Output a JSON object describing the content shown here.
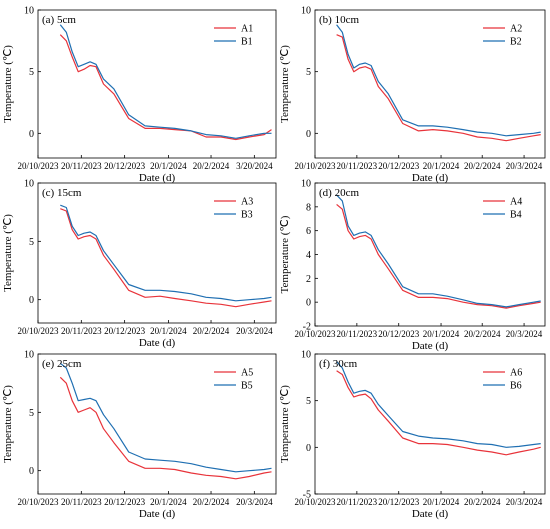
{
  "figure": {
    "series_colors": {
      "A": "#e8333a",
      "B": "#1f6fb2"
    }
  },
  "chart_data": [
    {
      "type": "line",
      "panel_label": "(a) 5cm",
      "xlabel": "Date (d)",
      "ylabel": "Temperature (℃)",
      "x_ticks": [
        "20/10/2023",
        "20/11/2023",
        "20/12/2023",
        "20/1/2024",
        "20/2/2024",
        "3/20/2024"
      ],
      "xlim": [
        "2023-10-20",
        "2024-03-28"
      ],
      "ylim": [
        -2,
        10
      ],
      "y_ticks": [
        0,
        5,
        10
      ],
      "legend_position": "top-right",
      "x": [
        "2023-11-04",
        "2023-11-08",
        "2023-11-12",
        "2023-11-16",
        "2023-11-20",
        "2023-11-24",
        "2023-11-28",
        "2023-12-03",
        "2023-12-10",
        "2023-12-20",
        "2023-12-31",
        "2024-01-10",
        "2024-01-20",
        "2024-01-31",
        "2024-02-10",
        "2024-02-20",
        "2024-03-01",
        "2024-03-10",
        "2024-03-20",
        "2024-03-25"
      ],
      "series": [
        {
          "name": "A1",
          "color": "#e8333a",
          "values": [
            8.0,
            7.5,
            6.2,
            5.0,
            5.2,
            5.5,
            5.4,
            4.0,
            3.2,
            1.2,
            0.4,
            0.4,
            0.3,
            0.2,
            -0.3,
            -0.3,
            -0.5,
            -0.3,
            -0.1,
            0.3
          ]
        },
        {
          "name": "B1",
          "color": "#1f6fb2",
          "values": [
            8.8,
            8.2,
            6.6,
            5.4,
            5.6,
            5.8,
            5.6,
            4.4,
            3.6,
            1.5,
            0.6,
            0.5,
            0.4,
            0.2,
            -0.1,
            -0.2,
            -0.4,
            -0.2,
            0.0,
            0.0
          ]
        }
      ]
    },
    {
      "type": "line",
      "panel_label": "(b) 10cm",
      "xlabel": "Date (d)",
      "ylabel": "Temperature (℃)",
      "x_ticks": [
        "20/10/2023",
        "20/11/2023",
        "20/12/2023",
        "20/1/2024",
        "20/2/2024",
        "20/3/2024"
      ],
      "xlim": [
        "2023-10-20",
        "2024-03-28"
      ],
      "ylim": [
        -2,
        10
      ],
      "y_ticks": [
        0,
        5,
        10
      ],
      "legend_position": "top-right",
      "x": [
        "2023-11-04",
        "2023-11-08",
        "2023-11-12",
        "2023-11-16",
        "2023-11-20",
        "2023-11-24",
        "2023-11-28",
        "2023-12-03",
        "2023-12-10",
        "2023-12-20",
        "2023-12-31",
        "2024-01-10",
        "2024-01-20",
        "2024-01-31",
        "2024-02-10",
        "2024-02-20",
        "2024-03-01",
        "2024-03-10",
        "2024-03-20",
        "2024-03-25"
      ],
      "series": [
        {
          "name": "A2",
          "color": "#e8333a",
          "values": [
            8.0,
            7.8,
            6.0,
            5.0,
            5.3,
            5.4,
            5.2,
            3.8,
            2.8,
            0.8,
            0.2,
            0.3,
            0.2,
            0.0,
            -0.3,
            -0.4,
            -0.6,
            -0.4,
            -0.2,
            -0.1
          ]
        },
        {
          "name": "B2",
          "color": "#1f6fb2",
          "values": [
            8.8,
            8.2,
            6.4,
            5.3,
            5.6,
            5.7,
            5.5,
            4.2,
            3.2,
            1.1,
            0.6,
            0.6,
            0.5,
            0.3,
            0.1,
            0.0,
            -0.2,
            -0.1,
            0.0,
            0.1
          ]
        }
      ]
    },
    {
      "type": "line",
      "panel_label": "(c) 15cm",
      "xlabel": "Date (d)",
      "ylabel": "Temperature (℃)",
      "x_ticks": [
        "20/10/2023",
        "20/11/2023",
        "20/12/2023",
        "20/1/2024",
        "20/2/2024",
        "20/3/2024"
      ],
      "xlim": [
        "2023-10-20",
        "2024-03-28"
      ],
      "ylim": [
        -2,
        10
      ],
      "y_ticks": [
        0,
        5,
        10
      ],
      "legend_position": "top-right",
      "x": [
        "2023-11-04",
        "2023-11-08",
        "2023-11-12",
        "2023-11-16",
        "2023-11-20",
        "2023-11-24",
        "2023-11-28",
        "2023-12-03",
        "2023-12-10",
        "2023-12-20",
        "2023-12-31",
        "2024-01-10",
        "2024-01-20",
        "2024-01-31",
        "2024-02-10",
        "2024-02-20",
        "2024-03-01",
        "2024-03-10",
        "2024-03-20",
        "2024-03-25"
      ],
      "series": [
        {
          "name": "A3",
          "color": "#e8333a",
          "values": [
            7.8,
            7.6,
            6.0,
            5.2,
            5.4,
            5.5,
            5.2,
            3.8,
            2.6,
            0.8,
            0.2,
            0.3,
            0.1,
            -0.1,
            -0.3,
            -0.4,
            -0.6,
            -0.4,
            -0.2,
            -0.1
          ]
        },
        {
          "name": "B3",
          "color": "#1f6fb2",
          "values": [
            8.1,
            7.9,
            6.3,
            5.5,
            5.7,
            5.8,
            5.5,
            4.2,
            3.0,
            1.3,
            0.8,
            0.8,
            0.7,
            0.5,
            0.2,
            0.1,
            -0.1,
            0.0,
            0.1,
            0.2
          ]
        }
      ]
    },
    {
      "type": "line",
      "panel_label": "(d) 20cm",
      "xlabel": "Date (d)",
      "ylabel": "Temperature (℃)",
      "x_ticks": [
        "20/10/2023",
        "20/11/2023",
        "20/12/2023",
        "20/1/2024",
        "20/2/2024",
        "20/3/2024"
      ],
      "xlim": [
        "2023-10-20",
        "2024-03-28"
      ],
      "ylim": [
        -2,
        10
      ],
      "y_ticks": [
        -2,
        0,
        2,
        4,
        6,
        8,
        10
      ],
      "legend_position": "top-right",
      "x": [
        "2023-11-04",
        "2023-11-08",
        "2023-11-12",
        "2023-11-16",
        "2023-11-20",
        "2023-11-24",
        "2023-11-28",
        "2023-12-03",
        "2023-12-10",
        "2023-12-20",
        "2023-12-31",
        "2024-01-10",
        "2024-01-20",
        "2024-01-31",
        "2024-02-10",
        "2024-02-20",
        "2024-03-01",
        "2024-03-10",
        "2024-03-20",
        "2024-03-25"
      ],
      "series": [
        {
          "name": "A4",
          "color": "#e8333a",
          "values": [
            8.2,
            7.8,
            6.0,
            5.3,
            5.5,
            5.6,
            5.3,
            4.0,
            2.8,
            1.0,
            0.4,
            0.4,
            0.3,
            0.0,
            -0.2,
            -0.3,
            -0.5,
            -0.3,
            -0.1,
            0.0
          ]
        },
        {
          "name": "B4",
          "color": "#1f6fb2",
          "values": [
            9.0,
            8.5,
            6.4,
            5.6,
            5.8,
            5.9,
            5.6,
            4.4,
            3.2,
            1.3,
            0.7,
            0.7,
            0.5,
            0.2,
            -0.1,
            -0.2,
            -0.4,
            -0.2,
            0.0,
            0.1
          ]
        }
      ]
    },
    {
      "type": "line",
      "panel_label": "(e) 25cm",
      "xlabel": "Date (d)",
      "ylabel": "Temperature (℃)",
      "x_ticks": [
        "20/10/2023",
        "20/11/2023",
        "20/12/2023",
        "20/1/2024",
        "20/2/2024",
        "20/3/2024"
      ],
      "xlim": [
        "2023-10-20",
        "2024-03-28"
      ],
      "ylim": [
        -2,
        10
      ],
      "y_ticks": [
        0,
        5,
        10
      ],
      "legend_position": "top-right",
      "x": [
        "2023-11-04",
        "2023-11-08",
        "2023-11-12",
        "2023-11-16",
        "2023-11-20",
        "2023-11-24",
        "2023-11-28",
        "2023-12-03",
        "2023-12-10",
        "2023-12-20",
        "2023-12-31",
        "2024-01-10",
        "2024-01-20",
        "2024-01-31",
        "2024-02-10",
        "2024-02-20",
        "2024-03-01",
        "2024-03-10",
        "2024-03-20",
        "2024-03-25"
      ],
      "series": [
        {
          "name": "A5",
          "color": "#e8333a",
          "values": [
            8.0,
            7.5,
            6.0,
            5.0,
            5.2,
            5.4,
            5.0,
            3.6,
            2.4,
            0.8,
            0.2,
            0.2,
            0.1,
            -0.2,
            -0.4,
            -0.5,
            -0.7,
            -0.5,
            -0.2,
            -0.1
          ]
        },
        {
          "name": "B5",
          "color": "#1f6fb2",
          "values": [
            9.2,
            8.8,
            7.5,
            6.0,
            6.1,
            6.2,
            6.0,
            4.8,
            3.6,
            1.6,
            1.0,
            0.9,
            0.8,
            0.6,
            0.3,
            0.1,
            -0.1,
            0.0,
            0.1,
            0.2
          ]
        }
      ]
    },
    {
      "type": "line",
      "panel_label": "(f) 30cm",
      "xlabel": "Date (d)",
      "ylabel": "Temperature (℃)",
      "x_ticks": [
        "20/10/2023",
        "20/11/2023",
        "20/12/2023",
        "20/1/2024",
        "20/2/2024",
        "20/3/2024"
      ],
      "xlim": [
        "2023-10-20",
        "2024-03-28"
      ],
      "ylim": [
        -5,
        10
      ],
      "y_ticks": [
        -5,
        0,
        5,
        10
      ],
      "legend_position": "top-right",
      "x": [
        "2023-11-04",
        "2023-11-08",
        "2023-11-12",
        "2023-11-16",
        "2023-11-20",
        "2023-11-24",
        "2023-11-28",
        "2023-12-03",
        "2023-12-10",
        "2023-12-20",
        "2023-12-31",
        "2024-01-10",
        "2024-01-20",
        "2024-01-31",
        "2024-02-10",
        "2024-02-20",
        "2024-03-01",
        "2024-03-10",
        "2024-03-20",
        "2024-03-25"
      ],
      "series": [
        {
          "name": "A6",
          "color": "#e8333a",
          "values": [
            8.2,
            7.8,
            6.4,
            5.4,
            5.6,
            5.7,
            5.2,
            4.0,
            2.8,
            1.0,
            0.4,
            0.4,
            0.3,
            0.0,
            -0.3,
            -0.5,
            -0.8,
            -0.5,
            -0.2,
            0.0
          ]
        },
        {
          "name": "B6",
          "color": "#1f6fb2",
          "values": [
            9.2,
            8.5,
            7.0,
            5.8,
            6.0,
            6.1,
            5.8,
            4.6,
            3.4,
            1.7,
            1.2,
            1.0,
            0.9,
            0.7,
            0.4,
            0.3,
            0.0,
            0.1,
            0.3,
            0.4
          ]
        }
      ]
    }
  ]
}
